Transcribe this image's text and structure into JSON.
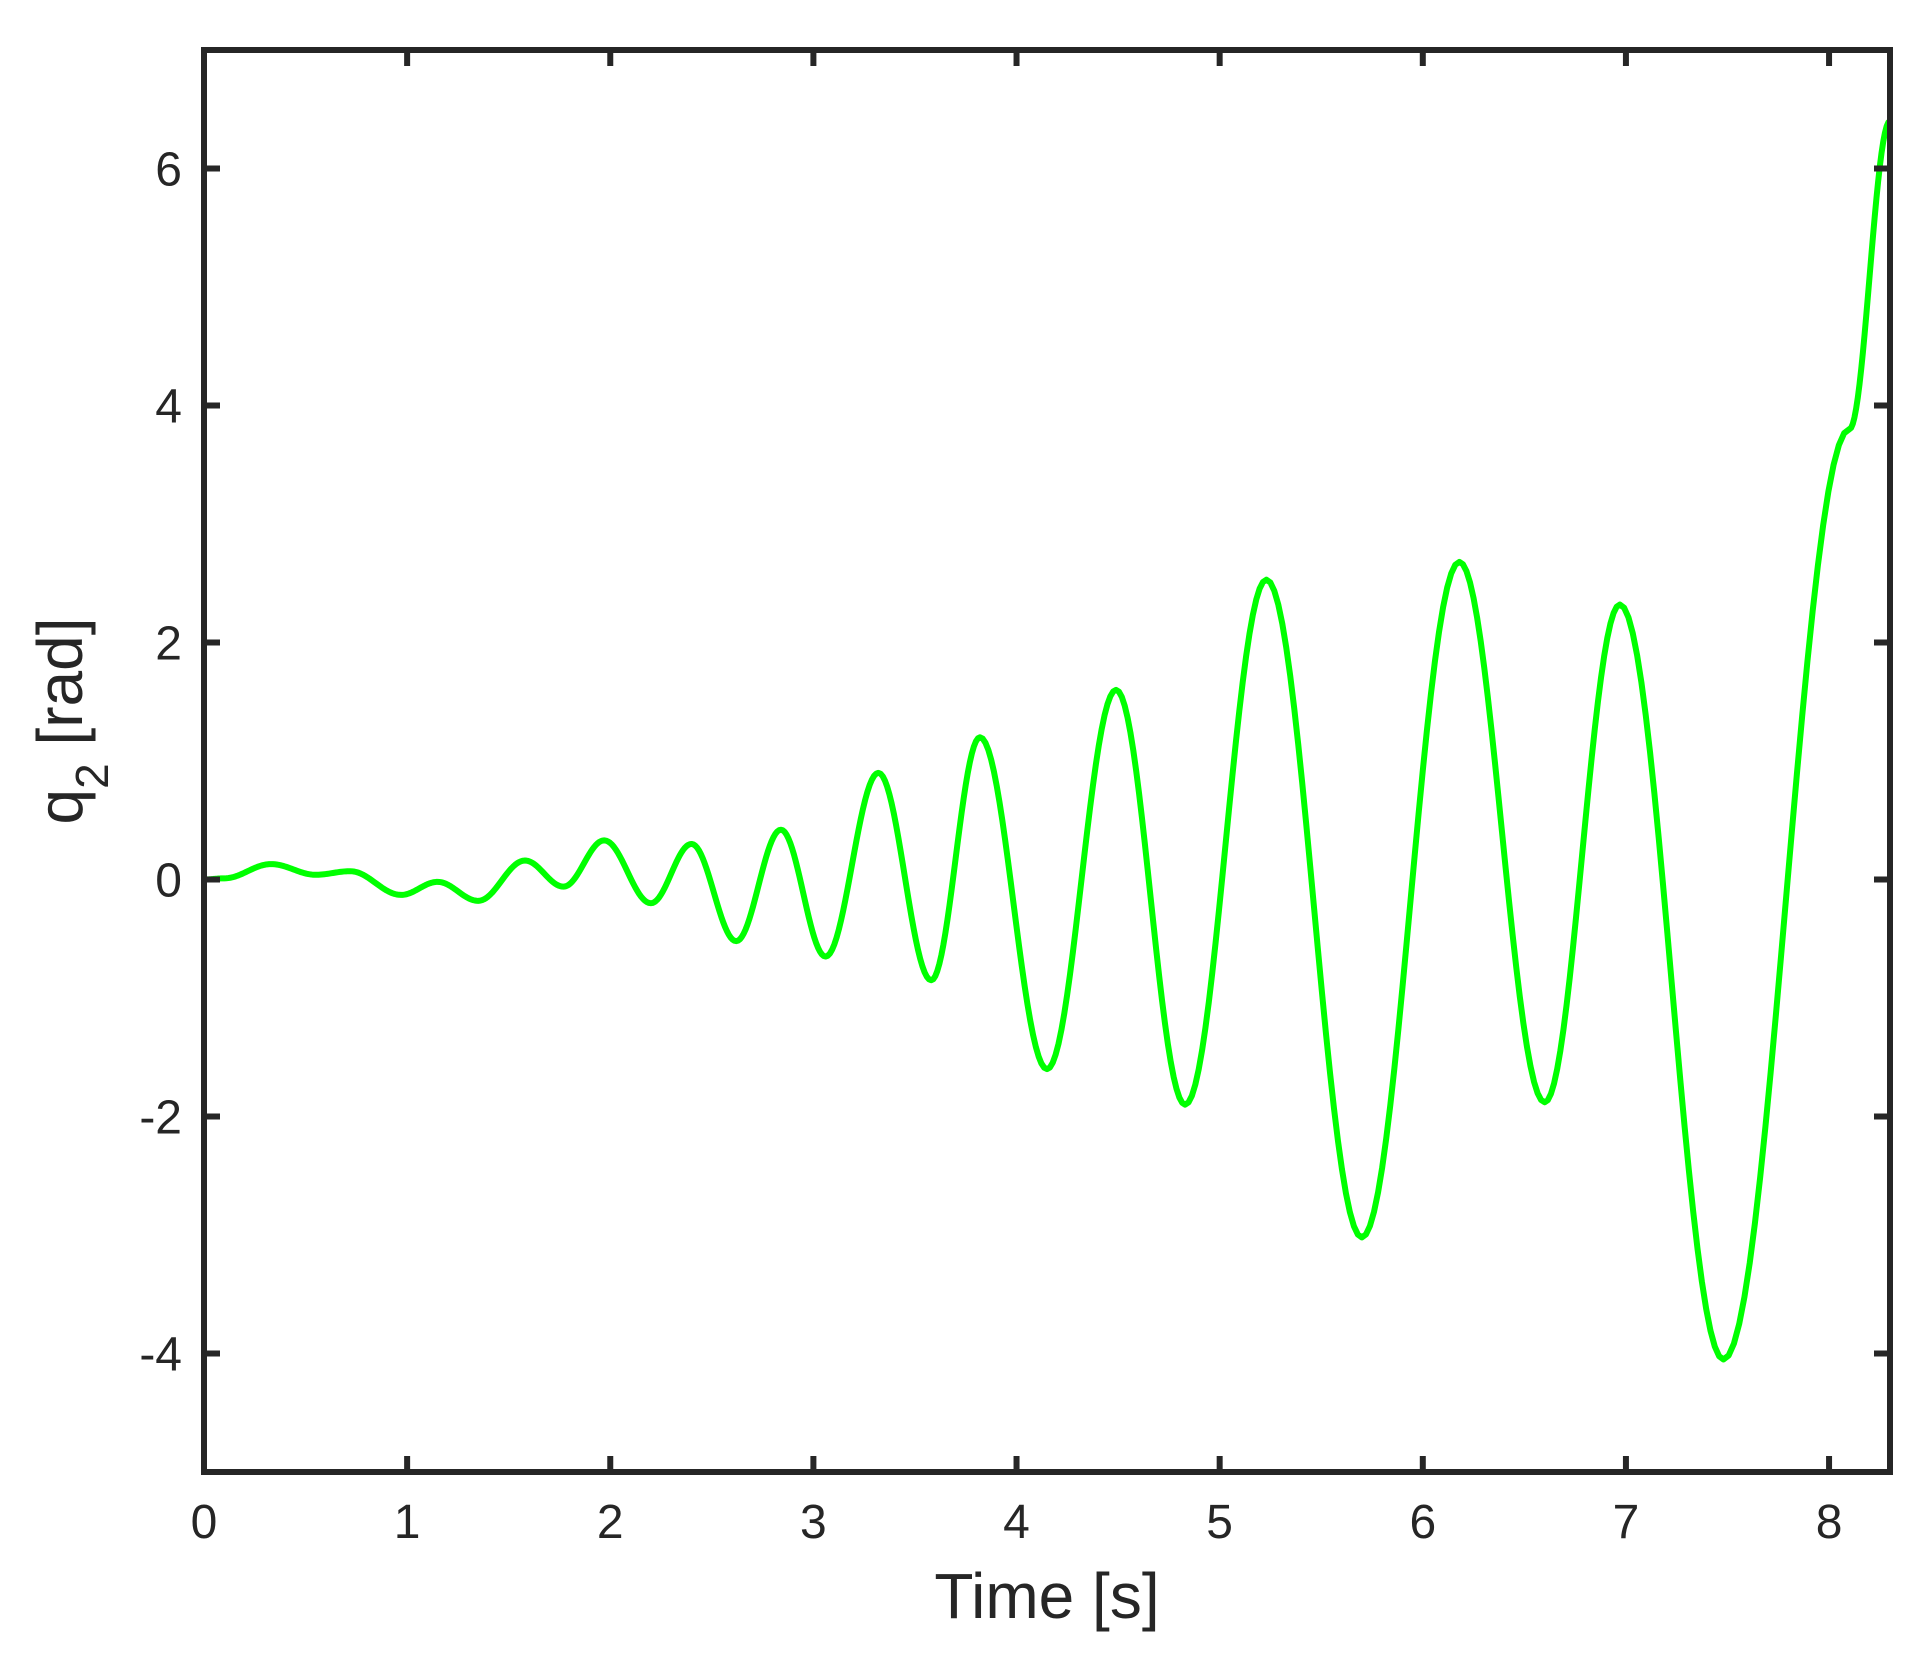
{
  "chart_data": {
    "type": "line",
    "title": "",
    "xlabel": "Time [s]",
    "ylabel": {
      "base": "q",
      "subscript": "2",
      "unit": "[rad]"
    },
    "xlim": [
      0,
      8.3
    ],
    "ylim": [
      -5,
      7
    ],
    "xticks": [
      0,
      1,
      2,
      3,
      4,
      5,
      6,
      7,
      8
    ],
    "yticks": [
      -4,
      -2,
      0,
      2,
      4,
      6
    ],
    "grid": false,
    "box": true,
    "line_color": "#00ff00",
    "axis_color": "#262626",
    "series": [
      {
        "extrema": [
          [
            0.0,
            0.0
          ],
          [
            0.1,
            0.01
          ],
          [
            0.33,
            0.13
          ],
          [
            0.55,
            0.04
          ],
          [
            0.72,
            0.07
          ],
          [
            0.97,
            -0.13
          ],
          [
            1.15,
            -0.02
          ],
          [
            1.35,
            -0.18
          ],
          [
            1.58,
            0.16
          ],
          [
            1.77,
            -0.06
          ],
          [
            1.97,
            0.33
          ],
          [
            2.2,
            -0.2
          ],
          [
            2.4,
            0.3
          ],
          [
            2.62,
            -0.52
          ],
          [
            2.84,
            0.42
          ],
          [
            3.06,
            -0.65
          ],
          [
            3.32,
            0.9
          ],
          [
            3.58,
            -0.85
          ],
          [
            3.82,
            1.2
          ],
          [
            4.15,
            -1.6
          ],
          [
            4.49,
            1.6
          ],
          [
            4.83,
            -1.9
          ],
          [
            5.23,
            2.53
          ],
          [
            5.7,
            -3.02
          ],
          [
            6.18,
            2.68
          ],
          [
            6.6,
            -1.88
          ],
          [
            6.97,
            2.32
          ],
          [
            7.48,
            -4.05
          ],
          [
            8.1,
            3.8
          ],
          [
            8.3,
            6.4
          ]
        ]
      }
    ]
  }
}
